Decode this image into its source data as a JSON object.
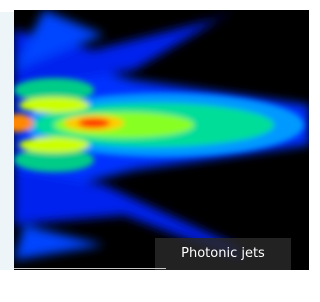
{
  "caption": "Photonic jets"
}
